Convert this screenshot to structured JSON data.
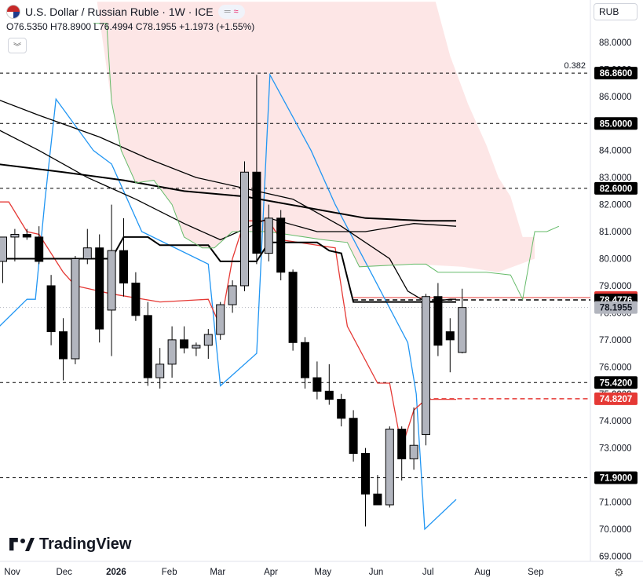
{
  "header": {
    "title": "U.S. Dollar / Russian Ruble · 1W · ICE",
    "ohlc": "O76.5350 H78.8900 L76.4994 C78.1955 +1.1973 (+1.55%)",
    "collapse_icon": "chevron-double-down-icon"
  },
  "currency_selector": "RUB",
  "logo_text": "TradingView",
  "settings_icon": "gear-icon",
  "colors": {
    "up": "#b2b5be",
    "down": "#000000",
    "red_line": "#e53935",
    "blue_line": "#2196f3",
    "green_line": "#66bb6a",
    "cloud": "#fde3e3"
  },
  "chart_data": {
    "type": "candlestick",
    "title": "U.S. Dollar / Russian Ruble · 1W · ICE",
    "ylim": [
      68.7,
      89.5
    ],
    "y_ticks": [
      "69.0000",
      "70.0000",
      "71.0000",
      "72.0000",
      "73.0000",
      "74.0000",
      "75.0000",
      "76.0000",
      "77.0000",
      "78.0000",
      "79.0000",
      "80.0000",
      "81.0000",
      "82.0000",
      "83.0000",
      "84.0000",
      "85.0000",
      "86.0000",
      "87.0000",
      "88.0000"
    ],
    "x_ticks": [
      {
        "label": "Nov",
        "week": 0
      },
      {
        "label": "Dec",
        "week": 4.3
      },
      {
        "label": "2026",
        "week": 8.6
      },
      {
        "label": "Feb",
        "week": 13
      },
      {
        "label": "Mar",
        "week": 17
      },
      {
        "label": "Apr",
        "week": 21.4
      },
      {
        "label": "May",
        "week": 25.7
      },
      {
        "label": "Jun",
        "week": 30.1
      },
      {
        "label": "Jul",
        "week": 34.4
      },
      {
        "label": "Aug",
        "week": 38.9
      },
      {
        "label": "Sep",
        "week": 43.3
      }
    ],
    "candles": [
      {
        "o": 79.9,
        "h": 80.8,
        "l": 79.1,
        "c": 80.8
      },
      {
        "o": 80.8,
        "h": 81.1,
        "l": 79.9,
        "c": 80.9
      },
      {
        "o": 80.9,
        "h": 81.1,
        "l": 80.7,
        "c": 80.8
      },
      {
        "o": 80.8,
        "h": 81.2,
        "l": 79.8,
        "c": 79.9
      },
      {
        "o": 79.0,
        "h": 79.4,
        "l": 76.8,
        "c": 77.3
      },
      {
        "o": 77.3,
        "h": 77.8,
        "l": 75.5,
        "c": 76.3
      },
      {
        "o": 76.3,
        "h": 80.1,
        "l": 76.1,
        "c": 80.0
      },
      {
        "o": 80.0,
        "h": 81.1,
        "l": 79.8,
        "c": 80.4
      },
      {
        "o": 80.4,
        "h": 80.9,
        "l": 76.9,
        "c": 77.4
      },
      {
        "o": 78.1,
        "h": 82.0,
        "l": 76.4,
        "c": 80.3
      },
      {
        "o": 80.3,
        "h": 81.5,
        "l": 78.6,
        "c": 79.1
      },
      {
        "o": 79.1,
        "h": 79.5,
        "l": 77.7,
        "c": 77.9
      },
      {
        "o": 77.9,
        "h": 78.4,
        "l": 75.3,
        "c": 75.6
      },
      {
        "o": 75.6,
        "h": 76.7,
        "l": 75.2,
        "c": 76.1
      },
      {
        "o": 76.1,
        "h": 77.5,
        "l": 75.6,
        "c": 77.0
      },
      {
        "o": 77.0,
        "h": 77.5,
        "l": 76.5,
        "c": 76.7
      },
      {
        "o": 76.7,
        "h": 76.9,
        "l": 76.4,
        "c": 76.8
      },
      {
        "o": 76.8,
        "h": 77.4,
        "l": 76.3,
        "c": 77.2
      },
      {
        "o": 77.2,
        "h": 78.4,
        "l": 77.0,
        "c": 78.3
      },
      {
        "o": 78.3,
        "h": 79.2,
        "l": 78.0,
        "c": 79.0
      },
      {
        "o": 79.0,
        "h": 83.6,
        "l": 78.8,
        "c": 83.2
      },
      {
        "o": 83.2,
        "h": 86.8,
        "l": 79.8,
        "c": 80.2
      },
      {
        "o": 80.2,
        "h": 82.0,
        "l": 79.9,
        "c": 81.5
      },
      {
        "o": 81.5,
        "h": 81.8,
        "l": 79.2,
        "c": 79.5
      },
      {
        "o": 79.5,
        "h": 79.6,
        "l": 76.6,
        "c": 76.9
      },
      {
        "o": 76.9,
        "h": 77.1,
        "l": 75.2,
        "c": 75.6
      },
      {
        "o": 75.6,
        "h": 76.2,
        "l": 74.8,
        "c": 75.1
      },
      {
        "o": 75.1,
        "h": 76.1,
        "l": 74.6,
        "c": 74.8
      },
      {
        "o": 74.8,
        "h": 75.0,
        "l": 73.8,
        "c": 74.1
      },
      {
        "o": 74.1,
        "h": 74.4,
        "l": 72.5,
        "c": 72.8
      },
      {
        "o": 72.8,
        "h": 73.0,
        "l": 70.1,
        "c": 71.3
      },
      {
        "o": 71.3,
        "h": 72.0,
        "l": 70.9,
        "c": 70.9
      },
      {
        "o": 70.9,
        "h": 73.8,
        "l": 70.8,
        "c": 73.7
      },
      {
        "o": 73.7,
        "h": 73.8,
        "l": 71.8,
        "c": 72.6
      },
      {
        "o": 72.6,
        "h": 74.5,
        "l": 72.2,
        "c": 73.1
      },
      {
        "o": 73.5,
        "h": 78.7,
        "l": 73.1,
        "c": 78.6
      },
      {
        "o": 78.6,
        "h": 79.1,
        "l": 76.4,
        "c": 76.8
      },
      {
        "o": 77.3,
        "h": 77.8,
        "l": 75.8,
        "c": 77.0
      },
      {
        "o": 76.535,
        "h": 78.89,
        "l": 76.4994,
        "c": 78.1955
      }
    ],
    "series": [
      {
        "color": "#2196f3",
        "values": [
          [
            -0.5,
            77.4
          ],
          [
            2,
            78.5
          ],
          [
            2.7,
            78.5
          ],
          [
            3.5,
            82.2
          ],
          [
            4.4,
            85.9
          ],
          [
            7.5,
            84.0
          ],
          [
            9,
            83.5
          ],
          [
            11.5,
            81.0
          ],
          [
            17,
            79.8
          ],
          [
            18,
            75.3
          ],
          [
            21,
            76.5
          ],
          [
            22.1,
            86.8
          ],
          [
            25.5,
            84.0
          ],
          [
            27.5,
            82.0
          ],
          [
            33.5,
            76.9
          ],
          [
            34.2,
            75.0
          ],
          [
            34.9,
            70.0
          ],
          [
            37.5,
            71.1
          ]
        ]
      },
      {
        "color": "#e53935",
        "values": [
          [
            -0.5,
            82.1
          ],
          [
            0.5,
            82.1
          ],
          [
            2,
            81.0
          ],
          [
            3,
            80.9
          ],
          [
            5,
            79.5
          ],
          [
            6,
            79.0
          ],
          [
            9,
            78.7
          ],
          [
            13,
            78.4
          ],
          [
            17,
            78.5
          ],
          [
            18,
            77.5
          ],
          [
            19,
            80.0
          ],
          [
            20,
            81.4
          ],
          [
            22,
            81.4
          ],
          [
            23,
            80.7
          ],
          [
            27.5,
            80.4
          ],
          [
            28.5,
            77.5
          ],
          [
            31,
            75.4
          ],
          [
            32,
            75.4
          ],
          [
            33,
            73.0
          ],
          [
            34,
            74.4
          ],
          [
            35,
            74.8
          ],
          [
            37.5,
            74.8
          ]
        ]
      },
      {
        "color": "#000000",
        "values": [
          [
            -0.5,
            80.0
          ],
          [
            9,
            80.0
          ],
          [
            10,
            80.8
          ],
          [
            12,
            80.8
          ],
          [
            13,
            80.5
          ],
          [
            17,
            80.5
          ],
          [
            18,
            79.9
          ],
          [
            21,
            79.9
          ],
          [
            22,
            80.6
          ],
          [
            26,
            80.6
          ],
          [
            27,
            80.3
          ],
          [
            28,
            80.2
          ],
          [
            29,
            78.4
          ],
          [
            37.5,
            78.4
          ]
        ]
      },
      {
        "color": "#000000",
        "values": [
          [
            -0.5,
            83.5
          ],
          [
            5,
            83.2
          ],
          [
            10,
            82.9
          ],
          [
            15,
            82.5
          ],
          [
            20,
            82.3
          ],
          [
            25,
            81.9
          ],
          [
            30,
            81.5
          ],
          [
            35,
            81.4
          ],
          [
            37.5,
            81.4
          ]
        ]
      },
      {
        "color": "#000000",
        "values": [
          [
            -0.5,
            85.9
          ],
          [
            3,
            85.3
          ],
          [
            8,
            84.5
          ],
          [
            12,
            83.7
          ],
          [
            16,
            83.0
          ],
          [
            20,
            82.6
          ],
          [
            24,
            82.2
          ],
          [
            28,
            81.2
          ],
          [
            32,
            80.0
          ],
          [
            33.5,
            78.8
          ],
          [
            35,
            78.4
          ],
          [
            37,
            78.5
          ],
          [
            37.5,
            78.5
          ]
        ]
      },
      {
        "color": "#000000",
        "values": [
          [
            -0.5,
            84.8
          ],
          [
            3,
            84.0
          ],
          [
            7,
            83.0
          ],
          [
            11,
            82.2
          ],
          [
            15,
            81.3
          ],
          [
            18,
            80.7
          ],
          [
            22,
            81.5
          ],
          [
            26,
            81.0
          ],
          [
            30,
            81.0
          ],
          [
            34,
            81.3
          ],
          [
            37.5,
            81.2
          ]
        ]
      },
      {
        "color": "#66bb6a",
        "values": [
          [
            7.5,
            88.7
          ],
          [
            8.6,
            88.7
          ],
          [
            9,
            85.8
          ],
          [
            9.8,
            84.0
          ],
          [
            11,
            82.8
          ],
          [
            12.5,
            82.9
          ],
          [
            14,
            82.0
          ],
          [
            15,
            80.8
          ],
          [
            16.5,
            80.4
          ],
          [
            17.5,
            80.4
          ],
          [
            19,
            81.0
          ],
          [
            22,
            81.0
          ],
          [
            26.5,
            80.7
          ],
          [
            28.5,
            80.6
          ],
          [
            29.5,
            79.7
          ],
          [
            34,
            79.8
          ],
          [
            34.8,
            79.8
          ],
          [
            35,
            79.8
          ],
          [
            36,
            79.5
          ],
          [
            40,
            79.5
          ],
          [
            42,
            79.4
          ],
          [
            43,
            78.5
          ],
          [
            44,
            81.0
          ],
          [
            45,
            81.0
          ],
          [
            46,
            81.2
          ]
        ]
      },
      {
        "color": "#fde3e3",
        "values": [
          [
            7.8,
            89.5
          ],
          [
            35.8,
            89.5
          ],
          [
            37,
            87.5
          ],
          [
            38.5,
            85.7
          ],
          [
            40,
            84.2
          ],
          [
            41,
            83.0
          ],
          [
            42,
            82.3
          ],
          [
            43,
            80.8
          ],
          [
            44,
            80.8
          ],
          [
            44,
            80.0
          ],
          [
            41,
            79.5
          ],
          [
            38,
            79.7
          ],
          [
            34,
            79.8
          ],
          [
            29.5,
            79.7
          ],
          [
            28.5,
            80.6
          ],
          [
            26.5,
            80.7
          ],
          [
            22,
            81.0
          ],
          [
            19,
            81.0
          ],
          [
            17.5,
            80.4
          ],
          [
            16.5,
            80.4
          ],
          [
            15,
            80.8
          ],
          [
            14,
            82.0
          ],
          [
            12.5,
            82.9
          ],
          [
            11,
            82.8
          ],
          [
            9.8,
            84.0
          ],
          [
            9,
            85.8
          ]
        ]
      }
    ],
    "horizontal_levels": [
      {
        "value": 86.86,
        "label": "86.8600",
        "style": "dashed",
        "color": "#000000",
        "bg": "#000000",
        "fg": "#ffffff",
        "note": "0.382"
      },
      {
        "value": 85.0,
        "label": "85.0000",
        "style": "dashed",
        "color": "#000000",
        "bg": "#000000",
        "fg": "#ffffff"
      },
      {
        "value": 82.6,
        "label": "82.6000",
        "style": "dashed",
        "color": "#000000",
        "bg": "#000000",
        "fg": "#ffffff"
      },
      {
        "value": 75.42,
        "label": "75.4200",
        "style": "dashed",
        "color": "#000000",
        "bg": "#000000",
        "fg": "#ffffff"
      },
      {
        "value": 71.9,
        "label": "71.9000",
        "style": "dashed",
        "color": "#000000",
        "bg": "#000000",
        "fg": "#ffffff"
      }
    ],
    "price_labels": [
      {
        "value": 78.563,
        "label": "78.5630",
        "bg": "#e53935",
        "fg": "#ffffff"
      },
      {
        "value": 78.4776,
        "label": "78.4776",
        "bg": "#000000",
        "fg": "#ffffff"
      },
      {
        "value": 78.1955,
        "label": "78.1955",
        "bg": "#b2b5be",
        "fg": "#131722"
      },
      {
        "value": 74.8207,
        "label": "74.8207",
        "bg": "#e53935",
        "fg": "#ffffff"
      }
    ]
  }
}
